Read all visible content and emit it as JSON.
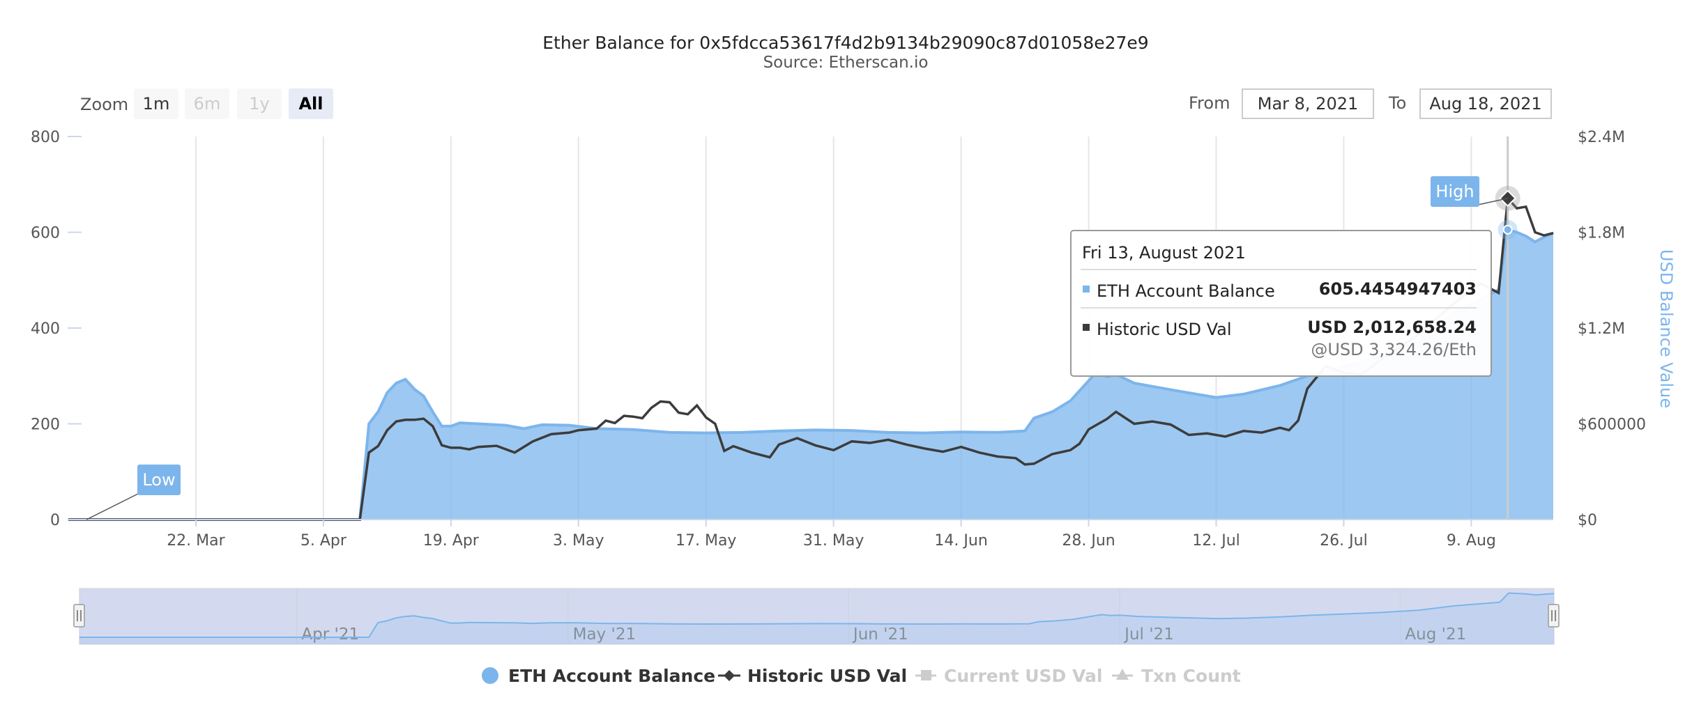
{
  "chart_data": {
    "type": "area",
    "title": "Ether Balance for 0x5fdcca53617f4d2b9134b29090c87d01058e27e9",
    "subtitle": "Source: Etherscan.io",
    "zoom": {
      "label": "Zoom",
      "buttons": [
        {
          "label": "1m",
          "state": "normal"
        },
        {
          "label": "6m",
          "state": "disabled"
        },
        {
          "label": "1y",
          "state": "disabled"
        },
        {
          "label": "All",
          "state": "selected"
        }
      ]
    },
    "range": {
      "from_label": "From",
      "from_value": "Mar 8, 2021",
      "to_label": "To",
      "to_value": "Aug 18, 2021"
    },
    "x_start": "2021-03-08",
    "x_end": "2021-08-18",
    "x_ticks": [
      {
        "date": "2021-03-22",
        "label": "22. Mar"
      },
      {
        "date": "2021-04-05",
        "label": "5. Apr"
      },
      {
        "date": "2021-04-19",
        "label": "19. Apr"
      },
      {
        "date": "2021-05-03",
        "label": "3. May"
      },
      {
        "date": "2021-05-17",
        "label": "17. May"
      },
      {
        "date": "2021-05-31",
        "label": "31. May"
      },
      {
        "date": "2021-06-14",
        "label": "14. Jun"
      },
      {
        "date": "2021-06-28",
        "label": "28. Jun"
      },
      {
        "date": "2021-07-12",
        "label": "12. Jul"
      },
      {
        "date": "2021-07-26",
        "label": "26. Jul"
      },
      {
        "date": "2021-08-09",
        "label": "9. Aug"
      }
    ],
    "y_left": {
      "ylim": [
        0,
        800
      ],
      "ticks": [
        "0",
        "200",
        "400",
        "600",
        "800"
      ]
    },
    "y_right": {
      "title": "USD Balance Value",
      "ylim": [
        0,
        2400000
      ],
      "ticks": [
        "$0",
        "$600000",
        "$1.2M",
        "$1.8M",
        "$2.4M"
      ]
    },
    "series": [
      {
        "name": "ETH Account Balance",
        "color": "#7cb5ec",
        "points": [
          [
            "2021-03-08",
            0
          ],
          [
            "2021-04-09",
            0
          ],
          [
            "2021-04-10",
            200
          ],
          [
            "2021-04-11",
            225
          ],
          [
            "2021-04-12",
            265
          ],
          [
            "2021-04-13",
            285
          ],
          [
            "2021-04-14",
            293
          ],
          [
            "2021-04-15",
            272
          ],
          [
            "2021-04-16",
            258
          ],
          [
            "2021-04-17",
            225
          ],
          [
            "2021-04-18",
            195
          ],
          [
            "2021-04-19",
            195
          ],
          [
            "2021-04-20",
            202
          ],
          [
            "2021-04-22",
            200
          ],
          [
            "2021-04-25",
            197
          ],
          [
            "2021-04-27",
            190
          ],
          [
            "2021-04-29",
            198
          ],
          [
            "2021-05-02",
            197
          ],
          [
            "2021-05-05",
            190
          ],
          [
            "2021-05-09",
            188
          ],
          [
            "2021-05-13",
            182
          ],
          [
            "2021-05-17",
            181
          ],
          [
            "2021-05-21",
            182
          ],
          [
            "2021-05-25",
            185
          ],
          [
            "2021-05-29",
            187
          ],
          [
            "2021-06-02",
            186
          ],
          [
            "2021-06-06",
            182
          ],
          [
            "2021-06-10",
            181
          ],
          [
            "2021-06-14",
            183
          ],
          [
            "2021-06-18",
            182
          ],
          [
            "2021-06-21",
            185
          ],
          [
            "2021-06-22",
            212
          ],
          [
            "2021-06-24",
            225
          ],
          [
            "2021-06-26",
            248
          ],
          [
            "2021-06-28",
            290
          ],
          [
            "2021-06-29",
            310
          ],
          [
            "2021-06-30",
            298
          ],
          [
            "2021-07-01",
            303
          ],
          [
            "2021-07-03",
            285
          ],
          [
            "2021-07-05",
            278
          ],
          [
            "2021-07-08",
            268
          ],
          [
            "2021-07-12",
            255
          ],
          [
            "2021-07-15",
            262
          ],
          [
            "2021-07-19",
            280
          ],
          [
            "2021-07-22",
            300
          ],
          [
            "2021-07-26",
            320
          ],
          [
            "2021-07-30",
            340
          ],
          [
            "2021-08-03",
            370
          ],
          [
            "2021-08-07",
            430
          ],
          [
            "2021-08-11",
            470
          ],
          [
            "2021-08-12",
            480
          ],
          [
            "2021-08-13",
            605.4454947403
          ],
          [
            "2021-08-14",
            600
          ],
          [
            "2021-08-15",
            592
          ],
          [
            "2021-08-16",
            580
          ],
          [
            "2021-08-17",
            590
          ],
          [
            "2021-08-18",
            598
          ]
        ]
      },
      {
        "name": "Historic USD Val",
        "color": "#3c3c3c",
        "points": [
          [
            "2021-03-08",
            0
          ],
          [
            "2021-04-09",
            0
          ],
          [
            "2021-04-10",
            420000
          ],
          [
            "2021-04-11",
            460000
          ],
          [
            "2021-04-12",
            560000
          ],
          [
            "2021-04-13",
            615000
          ],
          [
            "2021-04-14",
            625000
          ],
          [
            "2021-04-15",
            625000
          ],
          [
            "2021-04-16",
            632000
          ],
          [
            "2021-04-17",
            585000
          ],
          [
            "2021-04-18",
            465000
          ],
          [
            "2021-04-19",
            450000
          ],
          [
            "2021-04-20",
            450000
          ],
          [
            "2021-04-21",
            440000
          ],
          [
            "2021-04-22",
            455000
          ],
          [
            "2021-04-24",
            462000
          ],
          [
            "2021-04-26",
            420000
          ],
          [
            "2021-04-28",
            490000
          ],
          [
            "2021-04-30",
            535000
          ],
          [
            "2021-05-02",
            545000
          ],
          [
            "2021-05-03",
            560000
          ],
          [
            "2021-05-05",
            570000
          ],
          [
            "2021-05-06",
            620000
          ],
          [
            "2021-05-07",
            605000
          ],
          [
            "2021-05-08",
            650000
          ],
          [
            "2021-05-09",
            645000
          ],
          [
            "2021-05-10",
            635000
          ],
          [
            "2021-05-11",
            700000
          ],
          [
            "2021-05-12",
            740000
          ],
          [
            "2021-05-13",
            735000
          ],
          [
            "2021-05-14",
            670000
          ],
          [
            "2021-05-15",
            660000
          ],
          [
            "2021-05-16",
            715000
          ],
          [
            "2021-05-17",
            640000
          ],
          [
            "2021-05-18",
            600000
          ],
          [
            "2021-05-19",
            430000
          ],
          [
            "2021-05-20",
            460000
          ],
          [
            "2021-05-22",
            420000
          ],
          [
            "2021-05-24",
            390000
          ],
          [
            "2021-05-25",
            470000
          ],
          [
            "2021-05-27",
            510000
          ],
          [
            "2021-05-29",
            465000
          ],
          [
            "2021-05-31",
            435000
          ],
          [
            "2021-06-02",
            490000
          ],
          [
            "2021-06-04",
            480000
          ],
          [
            "2021-06-06",
            500000
          ],
          [
            "2021-06-08",
            470000
          ],
          [
            "2021-06-10",
            445000
          ],
          [
            "2021-06-12",
            425000
          ],
          [
            "2021-06-14",
            455000
          ],
          [
            "2021-06-16",
            420000
          ],
          [
            "2021-06-18",
            395000
          ],
          [
            "2021-06-20",
            385000
          ],
          [
            "2021-06-21",
            345000
          ],
          [
            "2021-06-22",
            350000
          ],
          [
            "2021-06-24",
            410000
          ],
          [
            "2021-06-26",
            435000
          ],
          [
            "2021-06-27",
            475000
          ],
          [
            "2021-06-28",
            565000
          ],
          [
            "2021-06-30",
            630000
          ],
          [
            "2021-07-01",
            675000
          ],
          [
            "2021-07-03",
            600000
          ],
          [
            "2021-07-05",
            615000
          ],
          [
            "2021-07-07",
            595000
          ],
          [
            "2021-07-09",
            530000
          ],
          [
            "2021-07-11",
            540000
          ],
          [
            "2021-07-13",
            520000
          ],
          [
            "2021-07-15",
            555000
          ],
          [
            "2021-07-17",
            545000
          ],
          [
            "2021-07-19",
            575000
          ],
          [
            "2021-07-20",
            560000
          ],
          [
            "2021-07-21",
            620000
          ],
          [
            "2021-07-22",
            820000
          ],
          [
            "2021-07-24",
            960000
          ],
          [
            "2021-07-26",
            920000
          ],
          [
            "2021-07-28",
            910000
          ],
          [
            "2021-07-30",
            1000000
          ],
          [
            "2021-08-03",
            1150000
          ],
          [
            "2021-08-07",
            1350000
          ],
          [
            "2021-08-10",
            1480000
          ],
          [
            "2021-08-12",
            1420000
          ],
          [
            "2021-08-13",
            2012658.24
          ],
          [
            "2021-08-14",
            1950000
          ],
          [
            "2021-08-15",
            1960000
          ],
          [
            "2021-08-16",
            1800000
          ],
          [
            "2021-08-17",
            1780000
          ],
          [
            "2021-08-18",
            1795000
          ]
        ]
      }
    ],
    "flags": [
      {
        "label": "Low",
        "date": "2021-03-10",
        "value": 0
      },
      {
        "label": "High",
        "date": "2021-08-13",
        "value": 2012658.24
      }
    ],
    "tooltip": {
      "date": "Fri 13, August 2021",
      "eth_label": "ETH Account Balance",
      "eth_value": "605.4454947403",
      "usd_label": "Historic USD Val",
      "usd_value": "USD 2,012,658.24",
      "usd_rate": "@USD 3,324.26/Eth"
    },
    "navigator": {
      "labels": [
        {
          "date": "2021-04-01",
          "label": "Apr '21"
        },
        {
          "date": "2021-05-01",
          "label": "May '21"
        },
        {
          "date": "2021-06-01",
          "label": "Jun '21"
        },
        {
          "date": "2021-07-01",
          "label": "Jul '21"
        },
        {
          "date": "2021-08-01",
          "label": "Aug '21"
        }
      ]
    },
    "legend": [
      {
        "name": "ETH Account Balance",
        "enabled": true,
        "color": "#7cb5ec",
        "symbol": "circle"
      },
      {
        "name": "Historic USD Val",
        "enabled": true,
        "color": "#3c3c3c",
        "symbol": "diamond"
      },
      {
        "name": "Current USD Val",
        "enabled": false,
        "color": "#cccccc",
        "symbol": "square"
      },
      {
        "name": "Txn Count",
        "enabled": false,
        "color": "#cccccc",
        "symbol": "triangle"
      }
    ],
    "legend_position": "bottom-center",
    "grid": "vertical"
  }
}
